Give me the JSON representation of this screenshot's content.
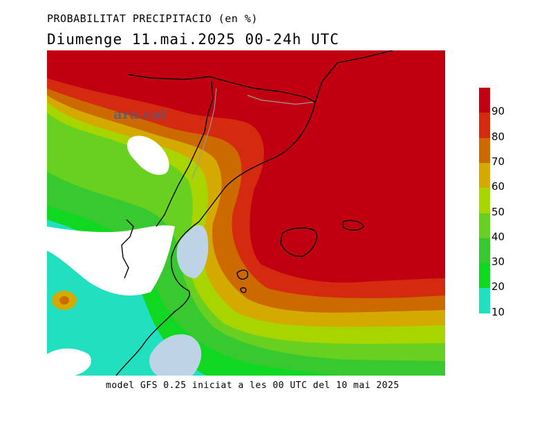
{
  "header": {
    "title": "PROBABILITAT PRECIPITACIO (en %)",
    "subtitle": "Diumenge  11.mai.2025 00-24h UTC"
  },
  "map": {
    "watermark": "ara.cat",
    "colors": {
      "over90": "#c00010",
      "80_90": "#d42a10",
      "70_80": "#cc6a00",
      "60_70": "#d4aa00",
      "50_60": "#a8d400",
      "40_50": "#68d020",
      "30_40": "#38c830",
      "20_30": "#10d820",
      "10_20": "#20e0c0",
      "sea_low": "#bcd4e6",
      "land_low": "#ffffff"
    }
  },
  "footer": {
    "text": "model GFS 0.25 iniciat a les 00 UTC del 10 mai 2025"
  },
  "legend": {
    "ticks": [
      "90",
      "80",
      "70",
      "60",
      "50",
      "40",
      "30",
      "20",
      "10"
    ],
    "bins": [
      {
        "range": ">90",
        "color": "#c00010"
      },
      {
        "range": "80-90",
        "color": "#d42a10"
      },
      {
        "range": "70-80",
        "color": "#cc6a00"
      },
      {
        "range": "60-70",
        "color": "#d4aa00"
      },
      {
        "range": "50-60",
        "color": "#a8d400"
      },
      {
        "range": "40-50",
        "color": "#68d020"
      },
      {
        "range": "30-40",
        "color": "#38c830"
      },
      {
        "range": "20-30",
        "color": "#10d820"
      },
      {
        "range": "10-20",
        "color": "#20e0c0"
      }
    ]
  }
}
